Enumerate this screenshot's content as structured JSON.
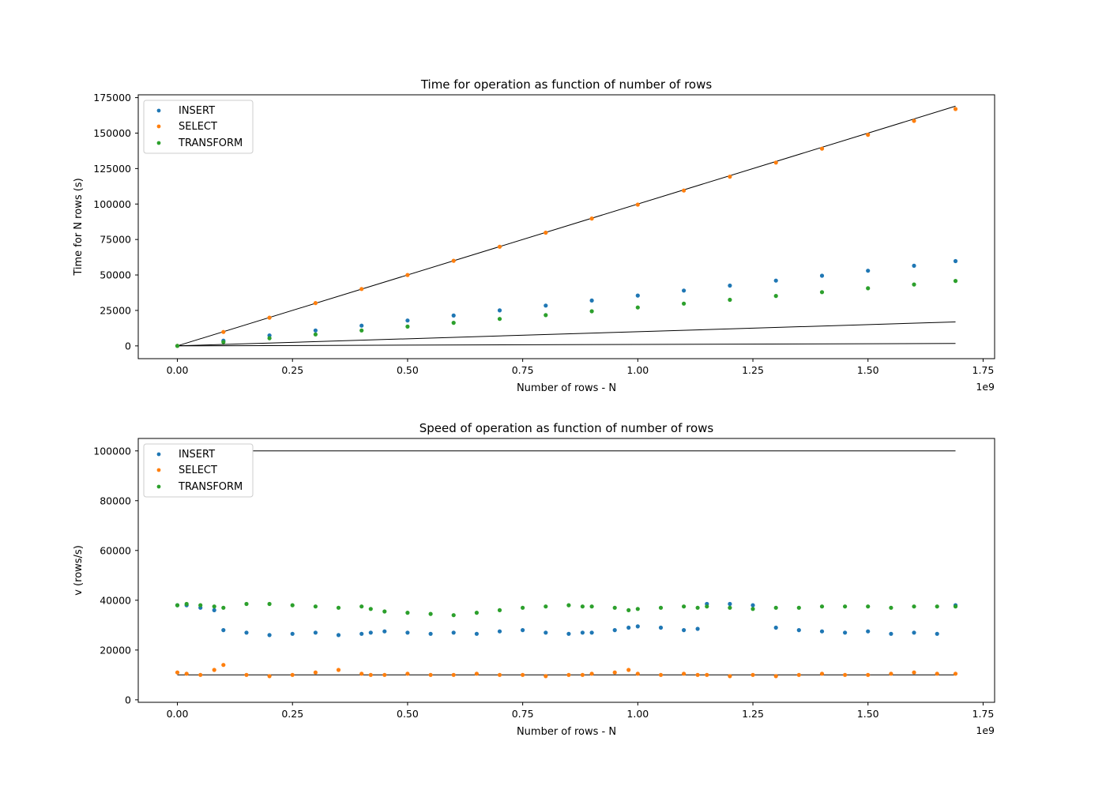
{
  "chart_data": [
    {
      "type": "scatter",
      "title": "Time for operation as function of number of rows",
      "xlabel": "Number of rows - N",
      "ylabel": "Time for N rows (s)",
      "x_offset_label": "1e9",
      "x_scale": 1000000000,
      "xlim": [
        -0.085,
        1.775
      ],
      "ylim": [
        -9000,
        177000
      ],
      "x_ticks": [
        0.0,
        0.25,
        0.5,
        0.75,
        1.0,
        1.25,
        1.5,
        1.75
      ],
      "x_tick_labels": [
        "0.00",
        "0.25",
        "0.50",
        "0.75",
        "1.00",
        "1.25",
        "1.50",
        "1.75"
      ],
      "y_ticks": [
        0,
        25000,
        50000,
        75000,
        100000,
        125000,
        150000,
        175000
      ],
      "y_tick_labels": [
        "0",
        "25000",
        "50000",
        "75000",
        "100000",
        "125000",
        "150000",
        "175000"
      ],
      "grid": false,
      "legend_position": "top-left",
      "series": [
        {
          "name": "INSERT",
          "color": "#1f77b4",
          "x": [
            0.0,
            0.1,
            0.2,
            0.3,
            0.4,
            0.5,
            0.6,
            0.7,
            0.8,
            0.9,
            1.0,
            1.1,
            1.2,
            1.3,
            1.4,
            1.5,
            1.6,
            1.69
          ],
          "y": [
            0,
            3700,
            7400,
            10900,
            14300,
            17900,
            21400,
            25000,
            28400,
            32000,
            35500,
            39000,
            42500,
            46000,
            49500,
            53000,
            56500,
            59800
          ]
        },
        {
          "name": "SELECT",
          "color": "#ff7f0e",
          "x": [
            0.0,
            0.1,
            0.2,
            0.3,
            0.4,
            0.5,
            0.6,
            0.7,
            0.8,
            0.9,
            1.0,
            1.1,
            1.2,
            1.3,
            1.4,
            1.5,
            1.6,
            1.69
          ],
          "y": [
            0,
            9800,
            19900,
            30200,
            40100,
            50000,
            60000,
            69900,
            79800,
            89800,
            99600,
            109500,
            119300,
            129200,
            139000,
            148800,
            158600,
            167000
          ]
        },
        {
          "name": "TRANSFORM",
          "color": "#2ca02c",
          "x": [
            0.0,
            0.1,
            0.2,
            0.3,
            0.4,
            0.5,
            0.6,
            0.7,
            0.8,
            0.9,
            1.0,
            1.1,
            1.2,
            1.3,
            1.4,
            1.5,
            1.6,
            1.69
          ],
          "y": [
            0,
            2700,
            5400,
            8100,
            10900,
            13600,
            16300,
            19000,
            21700,
            24400,
            27100,
            29800,
            32500,
            35200,
            37900,
            40600,
            43300,
            45800
          ]
        }
      ],
      "reference_lines": [
        {
          "color": "#000000",
          "x": [
            0.0,
            1.69
          ],
          "y": [
            0,
            169000
          ]
        },
        {
          "color": "#000000",
          "x": [
            0.0,
            1.69
          ],
          "y": [
            0,
            16900
          ]
        },
        {
          "color": "#000000",
          "x": [
            0.0,
            1.69
          ],
          "y": [
            0,
            1690
          ]
        }
      ]
    },
    {
      "type": "scatter",
      "title": "Speed of operation as function of number of rows",
      "xlabel": "Number of rows - N",
      "ylabel": "v (rows/s)",
      "x_offset_label": "1e9",
      "x_scale": 1000000000,
      "xlim": [
        -0.085,
        1.775
      ],
      "ylim": [
        -1000,
        105000
      ],
      "x_ticks": [
        0.0,
        0.25,
        0.5,
        0.75,
        1.0,
        1.25,
        1.5,
        1.75
      ],
      "x_tick_labels": [
        "0.00",
        "0.25",
        "0.50",
        "0.75",
        "1.00",
        "1.25",
        "1.50",
        "1.75"
      ],
      "y_ticks": [
        0,
        20000,
        40000,
        60000,
        80000,
        100000
      ],
      "y_tick_labels": [
        "0",
        "20000",
        "40000",
        "60000",
        "80000",
        "100000"
      ],
      "grid": false,
      "legend_position": "top-left",
      "series": [
        {
          "name": "INSERT",
          "color": "#1f77b4",
          "x": [
            0.0,
            0.02,
            0.05,
            0.08,
            0.1,
            0.15,
            0.2,
            0.25,
            0.3,
            0.35,
            0.4,
            0.42,
            0.45,
            0.5,
            0.55,
            0.6,
            0.65,
            0.7,
            0.75,
            0.8,
            0.85,
            0.88,
            0.9,
            0.95,
            0.98,
            1.0,
            1.05,
            1.1,
            1.13,
            1.15,
            1.2,
            1.25,
            1.3,
            1.35,
            1.4,
            1.45,
            1.5,
            1.55,
            1.6,
            1.65,
            1.69
          ],
          "y": [
            38000,
            38000,
            37000,
            36000,
            28000,
            27000,
            26000,
            26500,
            27000,
            26000,
            26500,
            27000,
            27500,
            27000,
            26500,
            27000,
            26500,
            27500,
            28000,
            27000,
            26500,
            27000,
            27000,
            28000,
            29000,
            29500,
            29000,
            28000,
            28500,
            38500,
            38500,
            38000,
            29000,
            28000,
            27500,
            27000,
            27500,
            26500,
            27000,
            26500,
            38000
          ]
        },
        {
          "name": "SELECT",
          "color": "#ff7f0e",
          "x": [
            0.0,
            0.02,
            0.05,
            0.08,
            0.1,
            0.15,
            0.2,
            0.25,
            0.3,
            0.35,
            0.4,
            0.42,
            0.45,
            0.5,
            0.55,
            0.6,
            0.65,
            0.7,
            0.75,
            0.8,
            0.85,
            0.88,
            0.9,
            0.95,
            0.98,
            1.0,
            1.05,
            1.1,
            1.13,
            1.15,
            1.2,
            1.25,
            1.3,
            1.35,
            1.4,
            1.45,
            1.5,
            1.55,
            1.6,
            1.65,
            1.69
          ],
          "y": [
            11000,
            10500,
            10000,
            12000,
            14000,
            10000,
            9500,
            10000,
            11000,
            12000,
            10500,
            10000,
            10000,
            10500,
            10000,
            10000,
            10500,
            10000,
            10000,
            9500,
            10000,
            10000,
            10500,
            11000,
            12000,
            10500,
            10000,
            10500,
            10000,
            10000,
            9500,
            10000,
            9500,
            10000,
            10500,
            10000,
            10000,
            10500,
            11000,
            10500,
            10500
          ]
        },
        {
          "name": "TRANSFORM",
          "color": "#2ca02c",
          "x": [
            0.0,
            0.02,
            0.05,
            0.08,
            0.1,
            0.15,
            0.2,
            0.25,
            0.3,
            0.35,
            0.4,
            0.42,
            0.45,
            0.5,
            0.55,
            0.6,
            0.65,
            0.7,
            0.75,
            0.8,
            0.85,
            0.88,
            0.9,
            0.95,
            0.98,
            1.0,
            1.05,
            1.1,
            1.13,
            1.15,
            1.2,
            1.25,
            1.3,
            1.35,
            1.4,
            1.45,
            1.5,
            1.55,
            1.6,
            1.65,
            1.69
          ],
          "y": [
            38000,
            38500,
            38000,
            37500,
            37000,
            38500,
            38500,
            38000,
            37500,
            37000,
            37500,
            36500,
            35500,
            35000,
            34500,
            34000,
            35000,
            36000,
            37000,
            37500,
            38000,
            37500,
            37500,
            37000,
            36000,
            36500,
            37000,
            37500,
            37000,
            37500,
            37000,
            36500,
            37000,
            37000,
            37500,
            37500,
            37500,
            37000,
            37500,
            37500,
            37500
          ]
        }
      ],
      "reference_lines": [
        {
          "color": "#000000",
          "x": [
            0.0,
            1.69
          ],
          "y": [
            100000,
            100000
          ]
        },
        {
          "color": "#000000",
          "x": [
            0.0,
            1.69
          ],
          "y": [
            10000,
            10000
          ]
        }
      ]
    }
  ]
}
